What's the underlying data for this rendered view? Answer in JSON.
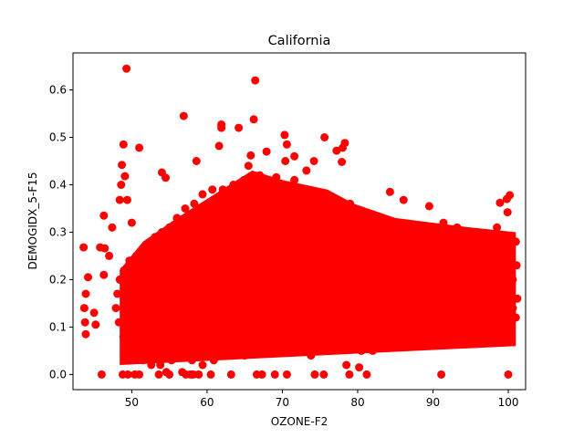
{
  "chart_data": {
    "type": "scatter",
    "title": "California",
    "xlabel": "OZONE-F2",
    "ylabel": "DEMOGIDX_5-F15",
    "xlim": [
      42.2,
      102.3
    ],
    "ylim": [
      -0.032,
      0.678
    ],
    "xticks": [
      "50",
      "60",
      "70",
      "80",
      "90",
      "100"
    ],
    "yticks": [
      "0.0",
      "0.1",
      "0.2",
      "0.3",
      "0.4",
      "0.5",
      "0.6"
    ],
    "grid": false,
    "marker_color": "#ff0000",
    "series": [
      {
        "points": [
          [
            49.3,
            0.645
          ],
          [
            66.4,
            0.62
          ],
          [
            56.9,
            0.545
          ],
          [
            66.2,
            0.538
          ],
          [
            61.9,
            0.527
          ],
          [
            61.9,
            0.52
          ],
          [
            64.2,
            0.52
          ],
          [
            70.3,
            0.505
          ],
          [
            75.6,
            0.5
          ],
          [
            78.3,
            0.488
          ],
          [
            48.9,
            0.485
          ],
          [
            51.0,
            0.478
          ],
          [
            61.6,
            0.482
          ],
          [
            78.0,
            0.478
          ],
          [
            70.6,
            0.485
          ],
          [
            77.2,
            0.472
          ],
          [
            65.8,
            0.462
          ],
          [
            67.9,
            0.47
          ],
          [
            71.6,
            0.46
          ],
          [
            74.2,
            0.45
          ],
          [
            58.6,
            0.45
          ],
          [
            48.7,
            0.442
          ],
          [
            77.9,
            0.448
          ],
          [
            54.0,
            0.426
          ],
          [
            49.1,
            0.418
          ],
          [
            48.6,
            0.4
          ],
          [
            54.5,
            0.415
          ],
          [
            69.2,
            0.416
          ],
          [
            84.3,
            0.385
          ],
          [
            86.1,
            0.368
          ],
          [
            89.5,
            0.355
          ],
          [
            99.8,
            0.37
          ],
          [
            98.9,
            0.362
          ],
          [
            100.2,
            0.378
          ],
          [
            99.9,
            0.342
          ],
          [
            48.4,
            0.368
          ],
          [
            49.4,
            0.368
          ],
          [
            47.4,
            0.31
          ],
          [
            46.3,
            0.335
          ],
          [
            50.0,
            0.32
          ],
          [
            43.6,
            0.268
          ],
          [
            45.8,
            0.268
          ],
          [
            46.4,
            0.266
          ],
          [
            47.0,
            0.25
          ],
          [
            44.2,
            0.205
          ],
          [
            43.9,
            0.17
          ],
          [
            43.7,
            0.14
          ],
          [
            43.8,
            0.11
          ],
          [
            43.9,
            0.085
          ],
          [
            45.0,
            0.13
          ],
          [
            45.2,
            0.105
          ],
          [
            46.3,
            0.21
          ],
          [
            46.0,
            0.0
          ],
          [
            48.8,
            0.0
          ],
          [
            49.5,
            0.0
          ],
          [
            50.4,
            0.0
          ],
          [
            51.0,
            0.0
          ],
          [
            53.6,
            0.0
          ],
          [
            55.0,
            0.0
          ],
          [
            57.2,
            0.0
          ],
          [
            57.8,
            0.0
          ],
          [
            58.2,
            0.0
          ],
          [
            58.9,
            0.0
          ],
          [
            60.5,
            0.0
          ],
          [
            63.2,
            0.0
          ],
          [
            66.6,
            0.0
          ],
          [
            67.3,
            0.0
          ],
          [
            69.0,
            0.0
          ],
          [
            70.6,
            0.0
          ],
          [
            74.3,
            0.0
          ],
          [
            75.5,
            0.0
          ],
          [
            78.9,
            0.0
          ],
          [
            80.2,
            0.015
          ],
          [
            81.2,
            0.0
          ],
          [
            91.1,
            0.0
          ],
          [
            100.0,
            0.0
          ],
          [
            54.6,
            0.005
          ],
          [
            56.7,
            0.005
          ],
          [
            78.5,
            0.02
          ],
          [
            80.5,
            0.05
          ],
          [
            82.0,
            0.05
          ],
          [
            83.2,
            0.06
          ],
          [
            92.2,
            0.065
          ],
          [
            96.6,
            0.07
          ],
          [
            85.2,
            0.09
          ],
          [
            88.7,
            0.09
          ],
          [
            91.2,
            0.1
          ],
          [
            93.6,
            0.085
          ],
          [
            95.6,
            0.08
          ],
          [
            98.2,
            0.07
          ],
          [
            100.4,
            0.08
          ],
          [
            101.0,
            0.12
          ],
          [
            101.2,
            0.16
          ],
          [
            100.6,
            0.2
          ],
          [
            100.1,
            0.25
          ],
          [
            99.6,
            0.29
          ],
          [
            98.5,
            0.31
          ],
          [
            97.5,
            0.28
          ],
          [
            95.5,
            0.3
          ],
          [
            93.2,
            0.31
          ],
          [
            91.4,
            0.32
          ],
          [
            90.2,
            0.3
          ],
          [
            88.3,
            0.29
          ],
          [
            86.1,
            0.31
          ],
          [
            84.1,
            0.32
          ],
          [
            82.0,
            0.3
          ],
          [
            80.6,
            0.33
          ],
          [
            79.0,
            0.36
          ],
          [
            92.3,
            0.26
          ],
          [
            94.2,
            0.22
          ],
          [
            96.1,
            0.18
          ],
          [
            97.7,
            0.15
          ],
          [
            99.2,
            0.12
          ],
          [
            101.1,
            0.23
          ],
          [
            86.4,
            0.25
          ],
          [
            84.7,
            0.22
          ],
          [
            83.1,
            0.18
          ],
          [
            81.4,
            0.15
          ],
          [
            87.3,
            0.14
          ],
          [
            89.2,
            0.18
          ],
          [
            90.5,
            0.21
          ],
          [
            92.7,
            0.14
          ],
          [
            95.0,
            0.12
          ],
          [
            97.0,
            0.2
          ],
          [
            98.7,
            0.24
          ],
          [
            96.2,
            0.26
          ],
          [
            83.0,
            0.27
          ],
          [
            85.5,
            0.12
          ],
          [
            88.1,
            0.11
          ],
          [
            90.8,
            0.16
          ],
          [
            93.1,
            0.19
          ],
          [
            94.7,
            0.27
          ],
          [
            99.5,
            0.18
          ],
          [
            101.0,
            0.28
          ],
          [
            100.6,
            0.14
          ],
          [
            82.4,
            0.23
          ],
          [
            81.3,
            0.27
          ],
          [
            80.0,
            0.2
          ],
          [
            79.0,
            0.16
          ],
          [
            78.2,
            0.12
          ],
          [
            76.6,
            0.28
          ],
          [
            75.3,
            0.33
          ],
          [
            74.0,
            0.37
          ],
          [
            73.2,
            0.43
          ],
          [
            72.3,
            0.38
          ],
          [
            71.6,
            0.41
          ],
          [
            70.4,
            0.45
          ],
          [
            69.1,
            0.36
          ],
          [
            68.0,
            0.4
          ],
          [
            67.0,
            0.42
          ],
          [
            65.5,
            0.44
          ],
          [
            64.9,
            0.41
          ],
          [
            63.5,
            0.4
          ],
          [
            62.1,
            0.39
          ],
          [
            60.7,
            0.39
          ],
          [
            59.4,
            0.38
          ],
          [
            58.3,
            0.36
          ],
          [
            57.1,
            0.35
          ],
          [
            56.0,
            0.33
          ],
          [
            55.0,
            0.31
          ],
          [
            54.0,
            0.3
          ],
          [
            53.1,
            0.29
          ],
          [
            52.3,
            0.27
          ],
          [
            51.3,
            0.26
          ],
          [
            50.6,
            0.25
          ],
          [
            49.7,
            0.24
          ],
          [
            49.0,
            0.22
          ],
          [
            48.4,
            0.2
          ],
          [
            48.1,
            0.17
          ],
          [
            47.9,
            0.14
          ],
          [
            48.3,
            0.11
          ],
          [
            48.9,
            0.08
          ],
          [
            49.5,
            0.06
          ],
          [
            50.4,
            0.04
          ],
          [
            51.5,
            0.03
          ],
          [
            52.6,
            0.02
          ],
          [
            53.8,
            0.02
          ],
          [
            55.3,
            0.03
          ],
          [
            56.6,
            0.04
          ],
          [
            58.0,
            0.03
          ],
          [
            59.4,
            0.02
          ],
          [
            60.9,
            0.03
          ],
          [
            62.3,
            0.04
          ],
          [
            63.6,
            0.05
          ],
          [
            65.0,
            0.04
          ],
          [
            66.3,
            0.05
          ],
          [
            67.7,
            0.06
          ],
          [
            69.2,
            0.05
          ],
          [
            70.8,
            0.06
          ],
          [
            72.3,
            0.05
          ],
          [
            73.8,
            0.04
          ],
          [
            75.2,
            0.05
          ],
          [
            76.6,
            0.06
          ],
          [
            77.9,
            0.07
          ],
          [
            79.2,
            0.08
          ]
        ]
      }
    ]
  }
}
